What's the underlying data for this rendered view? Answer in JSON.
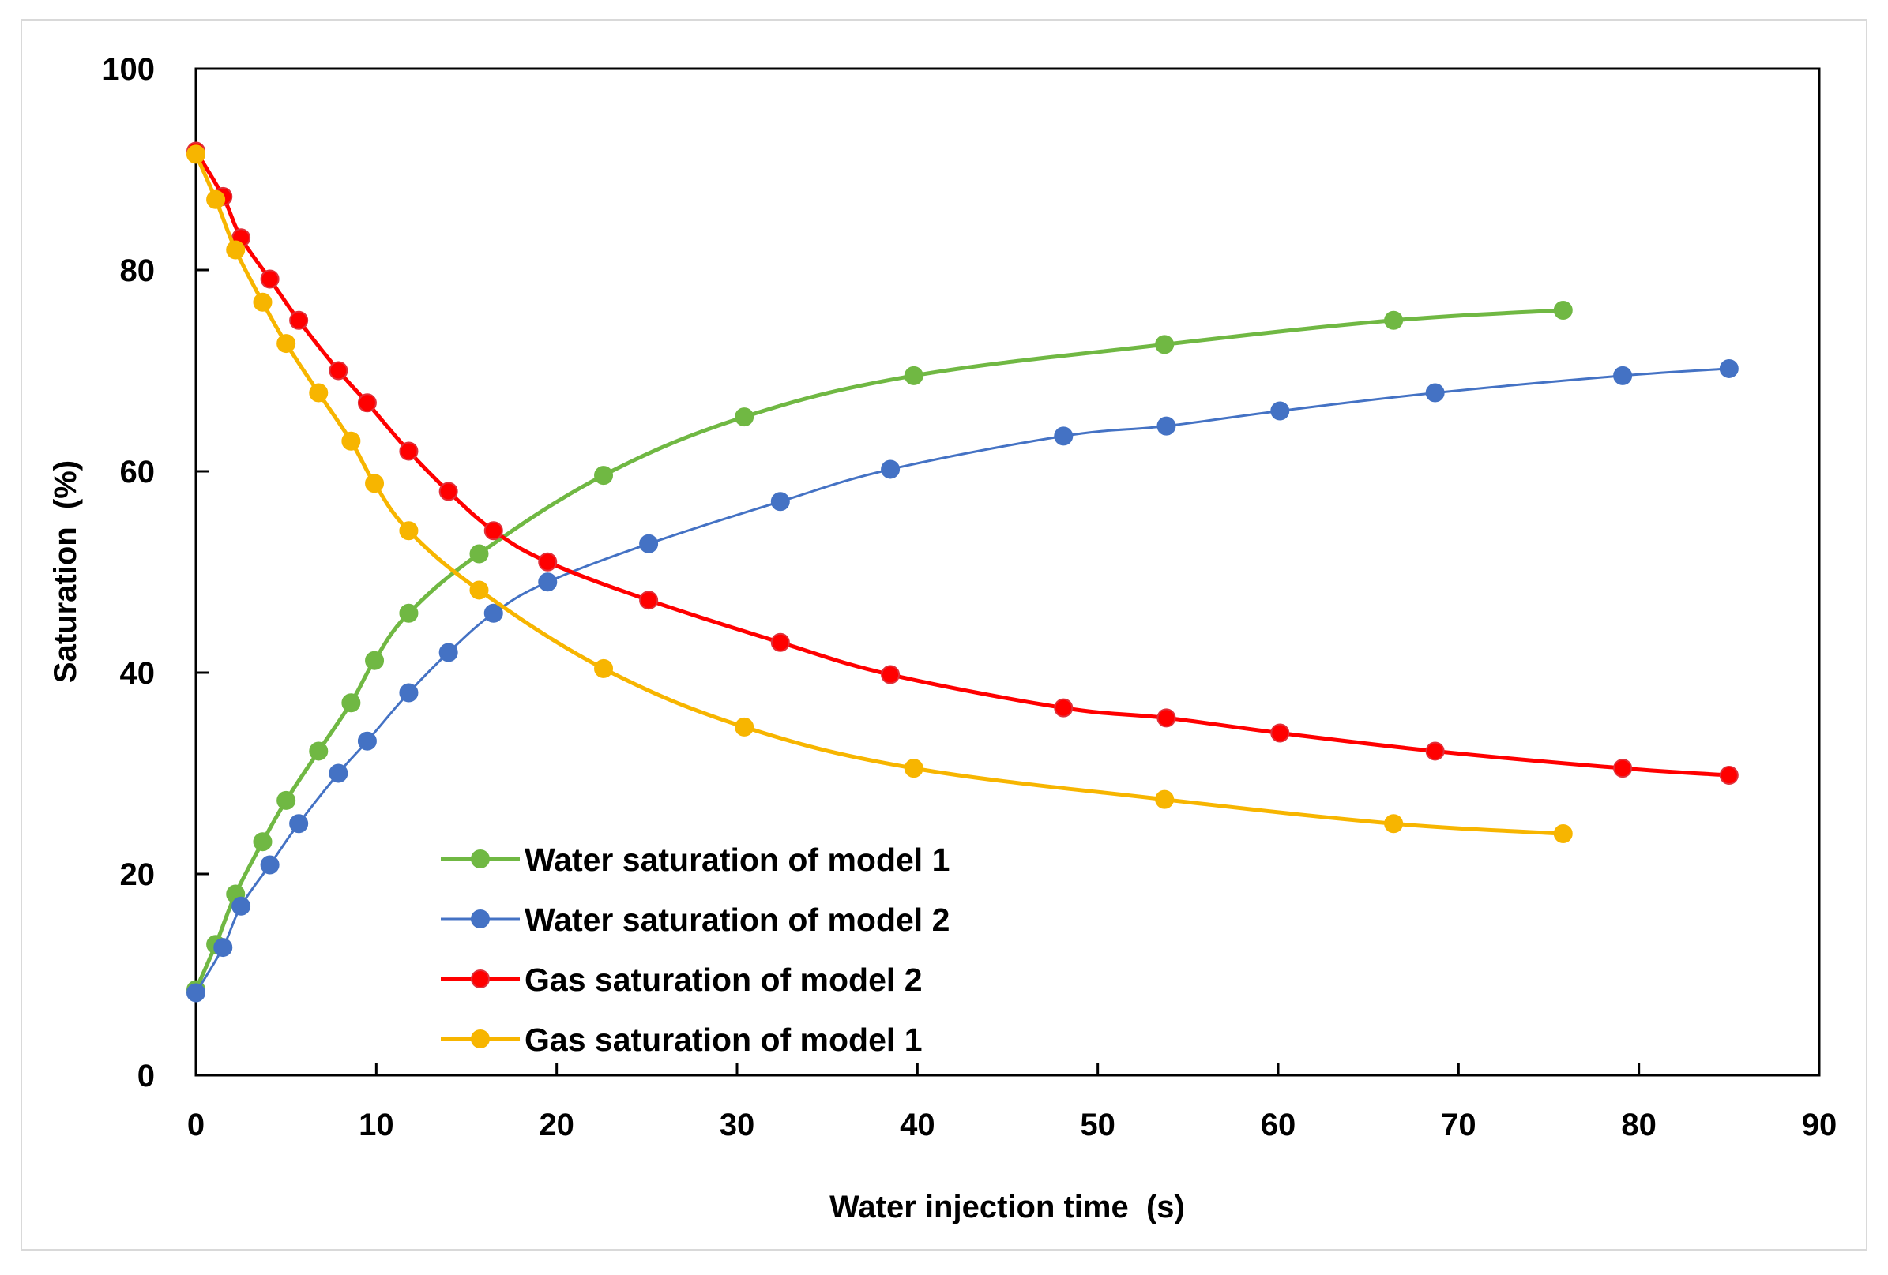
{
  "chart_data": {
    "type": "line",
    "title": "",
    "xlabel": "Water injection time  (s)",
    "ylabel": "Saturation  (%)",
    "xlim": [
      0,
      90
    ],
    "ylim": [
      0,
      100
    ],
    "xticks": [
      0,
      10,
      20,
      30,
      40,
      50,
      60,
      70,
      80,
      90
    ],
    "yticks": [
      0,
      20,
      40,
      60,
      80,
      100
    ],
    "xtick_labels": [
      "0",
      "10",
      "20",
      "30",
      "40",
      "50",
      "60",
      "70",
      "80",
      "90"
    ],
    "ytick_labels": [
      "0",
      "20",
      "40",
      "60",
      "80",
      "100"
    ],
    "grid": false,
    "legend_position": "bottom-left",
    "series": [
      {
        "name": "Water saturation of model 1",
        "color": "#70b843",
        "marker_stroke": "#70b843",
        "line_width": 5,
        "x": [
          0,
          1.1,
          2.2,
          3.7,
          5.0,
          6.8,
          8.6,
          9.9,
          11.8,
          15.7,
          22.6,
          30.4,
          39.8,
          53.7,
          66.4,
          75.8
        ],
        "y": [
          8.5,
          13,
          18,
          23.2,
          27.3,
          32.2,
          37,
          41.2,
          45.9,
          51.8,
          59.6,
          65.4,
          69.5,
          72.6,
          75,
          76
        ]
      },
      {
        "name": "Water saturation of model 2",
        "color": "#4472c4",
        "marker_stroke": "#4472c4",
        "line_width": 3,
        "x": [
          0,
          1.5,
          2.5,
          4.1,
          5.7,
          7.9,
          9.5,
          11.8,
          14.0,
          16.5,
          19.5,
          25.1,
          32.4,
          38.5,
          48.1,
          53.8,
          60.1,
          68.7,
          79.1,
          85.0
        ],
        "y": [
          8.2,
          12.7,
          16.8,
          20.9,
          25,
          30,
          33.2,
          38,
          42,
          45.9,
          49,
          52.8,
          57,
          60.2,
          63.5,
          64.5,
          66,
          67.8,
          69.5,
          70.2
        ]
      },
      {
        "name": "Gas saturation of model 2",
        "color": "#ff0000",
        "marker_stroke": "#e0303a",
        "line_width": 5,
        "x": [
          0,
          1.5,
          2.5,
          4.1,
          5.7,
          7.9,
          9.5,
          11.8,
          14.0,
          16.5,
          19.5,
          25.1,
          32.4,
          38.5,
          48.1,
          53.8,
          60.1,
          68.7,
          79.1,
          85.0
        ],
        "y": [
          91.8,
          87.3,
          83.2,
          79.1,
          75,
          70,
          66.8,
          62,
          58,
          54.1,
          51,
          47.2,
          43,
          39.8,
          36.5,
          35.5,
          34,
          32.2,
          30.5,
          29.8
        ]
      },
      {
        "name": "Gas saturation of model 1",
        "color": "#f7b500",
        "marker_stroke": "#f7b500",
        "line_width": 5,
        "x": [
          0,
          1.1,
          2.2,
          3.7,
          5.0,
          6.8,
          8.6,
          9.9,
          11.8,
          15.7,
          22.6,
          30.4,
          39.8,
          53.7,
          66.4,
          75.8
        ],
        "y": [
          91.5,
          87,
          82,
          76.8,
          72.7,
          67.8,
          63,
          58.8,
          54.1,
          48.2,
          40.4,
          34.6,
          30.5,
          27.4,
          25,
          24
        ]
      }
    ]
  }
}
